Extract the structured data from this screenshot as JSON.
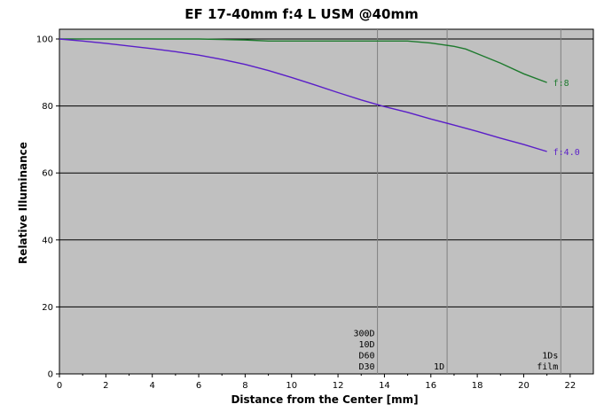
{
  "chart_data": {
    "type": "line",
    "title": "EF 17-40mm f:4 L USM  @40mm",
    "xlabel": "Distance from the Center [mm]",
    "ylabel": "Relative Illuminance",
    "xlim": [
      0,
      23
    ],
    "ylim": [
      0,
      100
    ],
    "xticks": [
      0,
      2,
      4,
      6,
      8,
      10,
      12,
      14,
      16,
      18,
      20,
      22
    ],
    "yticks": [
      0,
      20,
      40,
      60,
      80,
      100
    ],
    "grid": {
      "horizontal": true,
      "vertical": false
    },
    "plot_background": "#c0c0c0",
    "series": [
      {
        "name": "f:8",
        "color": "#1e7a2e",
        "x": [
          0,
          2,
          4,
          6,
          8,
          9,
          10,
          12,
          14,
          15,
          16,
          16.6,
          17,
          17.5,
          18,
          19,
          20,
          21
        ],
        "y": [
          100,
          100,
          100,
          100,
          99.7,
          99.4,
          99.4,
          99.4,
          99.4,
          99.4,
          98.8,
          98.2,
          97.8,
          97,
          95.6,
          92.8,
          89.6,
          87
        ]
      },
      {
        "name": "f:4.0",
        "color": "#5a1ec8",
        "x": [
          0,
          1,
          2,
          3,
          4,
          5,
          6,
          7,
          8,
          9,
          10,
          11,
          12,
          13,
          13.7,
          14,
          15,
          16,
          17,
          18,
          19,
          20,
          21
        ],
        "y": [
          100,
          99.4,
          98.7,
          97.9,
          97.1,
          96.2,
          95.2,
          93.9,
          92.4,
          90.6,
          88.5,
          86.3,
          84,
          81.8,
          80.4,
          79.8,
          78.1,
          76.1,
          74.3,
          72.4,
          70.4,
          68.5,
          66.4
        ]
      }
    ],
    "markers": [
      {
        "x": 13.7,
        "labels": [
          "300D",
          "10D",
          "D60",
          "D30"
        ]
      },
      {
        "x": 16.7,
        "labels": [
          "1D"
        ]
      },
      {
        "x": 21.6,
        "labels": [
          "1Ds",
          "film"
        ]
      }
    ]
  }
}
